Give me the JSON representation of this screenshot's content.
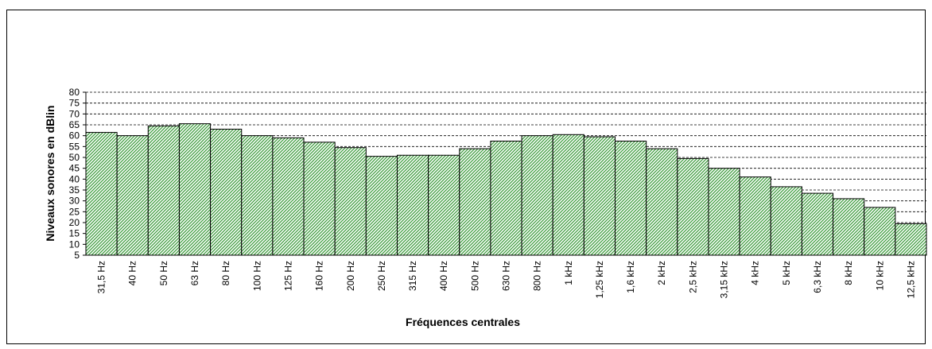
{
  "chart_data": {
    "type": "bar",
    "x_label": "Fréquences centrales",
    "y_label": "Niveaux sonores en dBlin",
    "categories": [
      "31,5 Hz",
      "40 Hz",
      "50 Hz",
      "63 Hz",
      "80 Hz",
      "100 Hz",
      "125 Hz",
      "160 Hz",
      "200 Hz",
      "250 Hz",
      "315 Hz",
      "400 Hz",
      "500 Hz",
      "630 Hz",
      "800 Hz",
      "1 kHz",
      "1,25 kHz",
      "1,6 kHz",
      "2 kHz",
      "2,5 kHz",
      "3,15 kHz",
      "4 kHz",
      "5 kHz",
      "6,3 kHz",
      "8 kHz",
      "10 kHz",
      "12,5 kHz"
    ],
    "values": [
      61.5,
      60,
      64.5,
      65.5,
      63,
      60,
      59,
      57,
      54.5,
      50.5,
      51,
      51,
      54,
      57.5,
      60,
      60.5,
      59.5,
      57.5,
      54,
      49.5,
      45,
      41,
      36.5,
      33.5,
      31,
      27,
      19.5
    ],
    "color": "#3c9c3c",
    "ylim": [
      5,
      80
    ],
    "yticks": [
      5,
      10,
      15,
      20,
      25,
      30,
      35,
      40,
      45,
      50,
      55,
      60,
      65,
      70,
      75,
      80
    ],
    "grid": true
  }
}
